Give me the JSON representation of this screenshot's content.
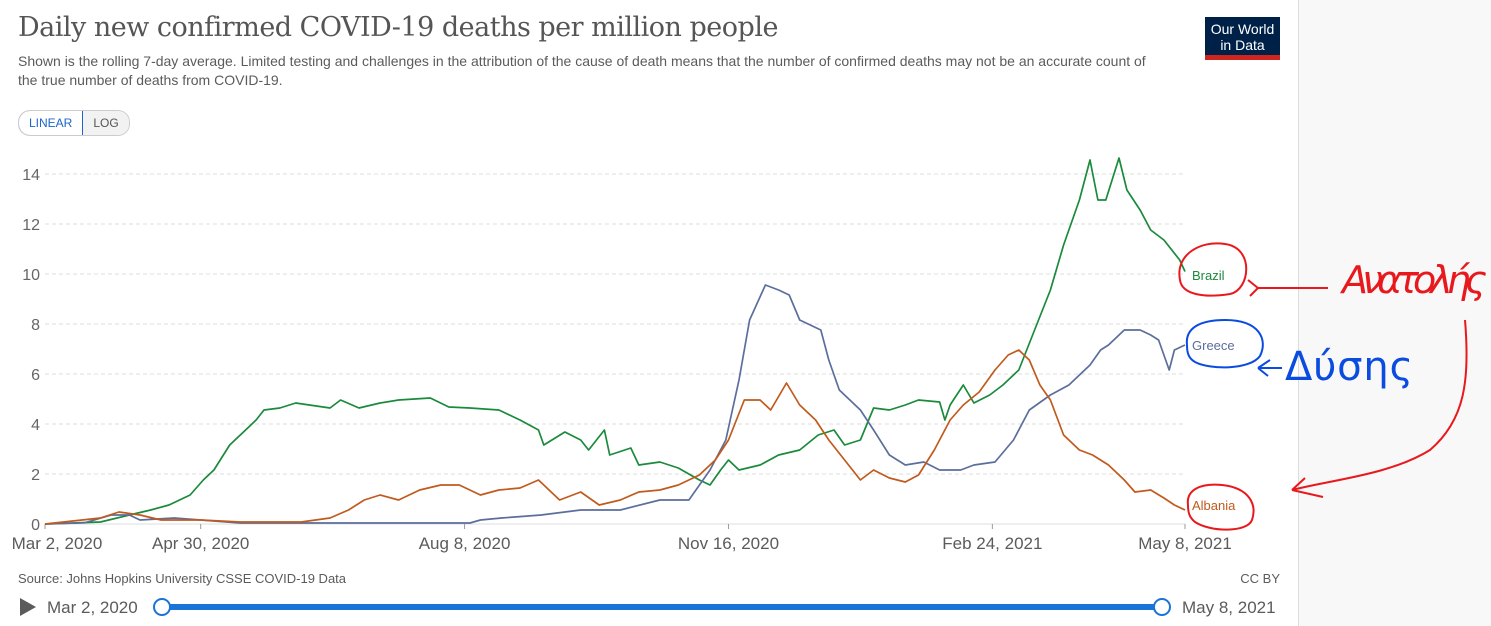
{
  "header": {
    "title": "Daily new confirmed COVID-19 deaths per million people",
    "subtitle": "Shown is the rolling 7-day average. Limited testing and challenges in the attribution of the cause of death means that the number of confirmed deaths may not be an accurate count of the true number of deaths from COVID-19.",
    "scale_options": [
      "LINEAR",
      "LOG"
    ],
    "selected_scale": "LINEAR",
    "logo_line1": "Our World",
    "logo_line2": "in Data"
  },
  "footer": {
    "source": "Source: Johns Hopkins University CSSE COVID-19 Data",
    "license": "CC BY",
    "play_icon": "play-icon",
    "timeline_start": "Mar 2, 2020",
    "timeline_end": "May 8, 2021",
    "timeline_range_fraction": [
      0,
      1
    ]
  },
  "annotations": {
    "east_label": "Ανατολής",
    "west_label": "Δύσης",
    "east_color": "#e8191d",
    "west_color": "#0a4be0"
  },
  "chart_data": {
    "type": "line",
    "title": "Daily new confirmed COVID-19 deaths per million people",
    "xlabel": "",
    "ylabel": "",
    "x_unit": "days since Mar 2, 2020",
    "xlim": [
      0,
      432
    ],
    "ylim": [
      0,
      15
    ],
    "yticks": [
      0,
      2,
      4,
      6,
      8,
      10,
      12,
      14
    ],
    "xticks": [
      {
        "day": 0,
        "label": "Mar 2, 2020"
      },
      {
        "day": 59,
        "label": "Apr 30, 2020"
      },
      {
        "day": 159,
        "label": "Aug 8, 2020"
      },
      {
        "day": 259,
        "label": "Nov 16, 2020"
      },
      {
        "day": 359,
        "label": "Feb 24, 2021"
      },
      {
        "day": 432,
        "label": "May 8, 2021"
      }
    ],
    "grid": "horizontal dashed",
    "legend": "inline-right",
    "series": [
      {
        "name": "Brazil",
        "color": "#1a8a3c",
        "points": [
          [
            0,
            0
          ],
          [
            21,
            0.08
          ],
          [
            32,
            0.36
          ],
          [
            40,
            0.56
          ],
          [
            47,
            0.76
          ],
          [
            55,
            1.16
          ],
          [
            60,
            1.76
          ],
          [
            64,
            2.16
          ],
          [
            70,
            3.16
          ],
          [
            76,
            3.76
          ],
          [
            80,
            4.16
          ],
          [
            83,
            4.56
          ],
          [
            89,
            4.64
          ],
          [
            95,
            4.84
          ],
          [
            108,
            4.64
          ],
          [
            112,
            4.96
          ],
          [
            119,
            4.64
          ],
          [
            127,
            4.84
          ],
          [
            134,
            4.96
          ],
          [
            146,
            5.04
          ],
          [
            153,
            4.68
          ],
          [
            161,
            4.64
          ],
          [
            172,
            4.56
          ],
          [
            180,
            4.16
          ],
          [
            187,
            3.76
          ],
          [
            189,
            3.16
          ],
          [
            197,
            3.68
          ],
          [
            203,
            3.36
          ],
          [
            206,
            2.96
          ],
          [
            212,
            3.76
          ],
          [
            214,
            2.76
          ],
          [
            222,
            3.04
          ],
          [
            225,
            2.36
          ],
          [
            233,
            2.48
          ],
          [
            240,
            2.24
          ],
          [
            248,
            1.76
          ],
          [
            252,
            1.56
          ],
          [
            256,
            2.16
          ],
          [
            259,
            2.56
          ],
          [
            263,
            2.16
          ],
          [
            271,
            2.36
          ],
          [
            278,
            2.76
          ],
          [
            286,
            2.96
          ],
          [
            293,
            3.56
          ],
          [
            299,
            3.76
          ],
          [
            303,
            3.16
          ],
          [
            309,
            3.36
          ],
          [
            314,
            4.64
          ],
          [
            320,
            4.56
          ],
          [
            326,
            4.76
          ],
          [
            331,
            4.96
          ],
          [
            339,
            4.88
          ],
          [
            341,
            4.16
          ],
          [
            343,
            4.76
          ],
          [
            348,
            5.56
          ],
          [
            352,
            4.84
          ],
          [
            358,
            5.16
          ],
          [
            363,
            5.56
          ],
          [
            369,
            6.16
          ],
          [
            375,
            7.76
          ],
          [
            381,
            9.36
          ],
          [
            386,
            11.16
          ],
          [
            392,
            12.96
          ],
          [
            396,
            14.56
          ],
          [
            399,
            12.96
          ],
          [
            402,
            12.96
          ],
          [
            407,
            14.64
          ],
          [
            410,
            13.36
          ],
          [
            415,
            12.56
          ],
          [
            419,
            11.76
          ],
          [
            424,
            11.36
          ],
          [
            430,
            10.56
          ],
          [
            432,
            10.1
          ]
        ]
      },
      {
        "name": "Greece",
        "color": "#5b6e9c",
        "points": [
          [
            0,
            0
          ],
          [
            15,
            0.05
          ],
          [
            25,
            0.36
          ],
          [
            32,
            0.36
          ],
          [
            36,
            0.16
          ],
          [
            49,
            0.24
          ],
          [
            59,
            0.16
          ],
          [
            74,
            0.04
          ],
          [
            161,
            0.04
          ],
          [
            165,
            0.16
          ],
          [
            173,
            0.24
          ],
          [
            188,
            0.36
          ],
          [
            203,
            0.56
          ],
          [
            218,
            0.56
          ],
          [
            233,
            0.96
          ],
          [
            244,
            0.96
          ],
          [
            252,
            2.16
          ],
          [
            258,
            3.36
          ],
          [
            263,
            5.76
          ],
          [
            267,
            8.16
          ],
          [
            273,
            9.56
          ],
          [
            278,
            9.36
          ],
          [
            282,
            9.16
          ],
          [
            286,
            8.16
          ],
          [
            294,
            7.76
          ],
          [
            297,
            6.56
          ],
          [
            301,
            5.36
          ],
          [
            309,
            4.56
          ],
          [
            314,
            3.76
          ],
          [
            320,
            2.76
          ],
          [
            326,
            2.36
          ],
          [
            333,
            2.48
          ],
          [
            339,
            2.16
          ],
          [
            347,
            2.16
          ],
          [
            352,
            2.36
          ],
          [
            360,
            2.48
          ],
          [
            367,
            3.36
          ],
          [
            373,
            4.56
          ],
          [
            381,
            5.16
          ],
          [
            388,
            5.56
          ],
          [
            396,
            6.36
          ],
          [
            400,
            6.96
          ],
          [
            403,
            7.16
          ],
          [
            409,
            7.76
          ],
          [
            415,
            7.76
          ],
          [
            419,
            7.56
          ],
          [
            422,
            7.36
          ],
          [
            426,
            6.16
          ],
          [
            428,
            6.96
          ],
          [
            432,
            7.16
          ]
        ]
      },
      {
        "name": "Albania",
        "color": "#c15a1d",
        "points": [
          [
            0,
            0
          ],
          [
            21,
            0.24
          ],
          [
            28,
            0.48
          ],
          [
            36,
            0.36
          ],
          [
            44,
            0.16
          ],
          [
            59,
            0.16
          ],
          [
            74,
            0.08
          ],
          [
            97,
            0.08
          ],
          [
            108,
            0.24
          ],
          [
            115,
            0.56
          ],
          [
            121,
            0.96
          ],
          [
            127,
            1.16
          ],
          [
            134,
            0.96
          ],
          [
            142,
            1.36
          ],
          [
            150,
            1.56
          ],
          [
            157,
            1.56
          ],
          [
            165,
            1.16
          ],
          [
            172,
            1.36
          ],
          [
            180,
            1.44
          ],
          [
            187,
            1.76
          ],
          [
            195,
            0.96
          ],
          [
            203,
            1.28
          ],
          [
            210,
            0.76
          ],
          [
            218,
            0.96
          ],
          [
            225,
            1.28
          ],
          [
            233,
            1.36
          ],
          [
            240,
            1.56
          ],
          [
            248,
            1.96
          ],
          [
            254,
            2.56
          ],
          [
            259,
            3.36
          ],
          [
            265,
            4.96
          ],
          [
            271,
            4.96
          ],
          [
            275,
            4.56
          ],
          [
            281,
            5.64
          ],
          [
            286,
            4.76
          ],
          [
            292,
            4.16
          ],
          [
            297,
            3.36
          ],
          [
            303,
            2.56
          ],
          [
            309,
            1.76
          ],
          [
            314,
            2.16
          ],
          [
            320,
            1.84
          ],
          [
            326,
            1.68
          ],
          [
            331,
            1.96
          ],
          [
            337,
            2.96
          ],
          [
            343,
            4.16
          ],
          [
            348,
            4.76
          ],
          [
            354,
            5.28
          ],
          [
            360,
            6.16
          ],
          [
            365,
            6.76
          ],
          [
            369,
            6.96
          ],
          [
            373,
            6.56
          ],
          [
            377,
            5.56
          ],
          [
            381,
            4.96
          ],
          [
            386,
            3.56
          ],
          [
            392,
            2.96
          ],
          [
            397,
            2.76
          ],
          [
            403,
            2.36
          ],
          [
            409,
            1.76
          ],
          [
            413,
            1.28
          ],
          [
            419,
            1.36
          ],
          [
            424,
            1.04
          ],
          [
            428,
            0.76
          ],
          [
            432,
            0.56
          ]
        ]
      }
    ]
  }
}
